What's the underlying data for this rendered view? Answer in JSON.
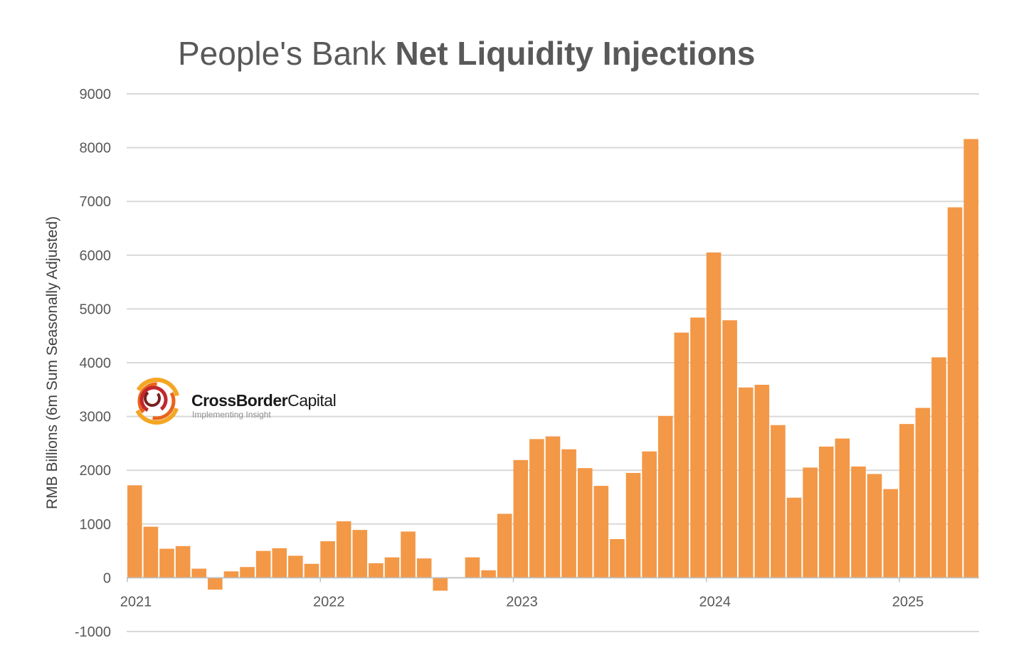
{
  "title": {
    "part1": "People's Bank ",
    "part2": "Net Liquidity Injections"
  },
  "logo": {
    "brand_bold": "CrossBorder",
    "brand_regular": "Capital",
    "tagline": "Implementing Insight"
  },
  "colors": {
    "bar": "#F39847",
    "grid": "#D9D9D9",
    "axis_text": "#595959",
    "title": "#595959"
  },
  "chart_data": {
    "type": "bar",
    "title": "People's Bank Net Liquidity Injections",
    "ylabel": "RMB  Billions (6m Sum Seasonally Adjusted)",
    "xlabel": "",
    "ylim": [
      -1000,
      9000
    ],
    "yticks": [
      9000,
      8000,
      7000,
      6000,
      5000,
      4000,
      3000,
      2000,
      1000,
      0,
      -1000
    ],
    "grid": true,
    "frequency": "monthly",
    "categories": [
      "2021-01",
      "2021-02",
      "2021-03",
      "2021-04",
      "2021-05",
      "2021-06",
      "2021-07",
      "2021-08",
      "2021-09",
      "2021-10",
      "2021-11",
      "2021-12",
      "2022-01",
      "2022-02",
      "2022-03",
      "2022-04",
      "2022-05",
      "2022-06",
      "2022-07",
      "2022-08",
      "2022-09",
      "2022-10",
      "2022-11",
      "2022-12",
      "2023-01",
      "2023-02",
      "2023-03",
      "2023-04",
      "2023-05",
      "2023-06",
      "2023-07",
      "2023-08",
      "2023-09",
      "2023-10",
      "2023-11",
      "2023-12",
      "2024-01",
      "2024-02",
      "2024-03",
      "2024-04",
      "2024-05",
      "2024-06",
      "2024-07",
      "2024-08",
      "2024-09",
      "2024-10",
      "2024-11",
      "2024-12",
      "2025-01",
      "2025-02",
      "2025-03",
      "2025-04",
      "2025-05"
    ],
    "values": [
      1720,
      950,
      540,
      590,
      170,
      -220,
      120,
      200,
      500,
      550,
      410,
      260,
      680,
      1050,
      890,
      270,
      380,
      860,
      360,
      -240,
      0,
      380,
      140,
      1190,
      2190,
      2580,
      2630,
      2390,
      2040,
      1710,
      720,
      1950,
      2350,
      3010,
      4560,
      4840,
      6050,
      4790,
      3540,
      3590,
      2840,
      1490,
      2050,
      2440,
      2590,
      2070,
      1930,
      1650,
      2860,
      3160,
      4100,
      6890,
      8160
    ],
    "x_tick_labels": [
      "2021",
      "2022",
      "2023",
      "2024",
      "2025"
    ]
  }
}
